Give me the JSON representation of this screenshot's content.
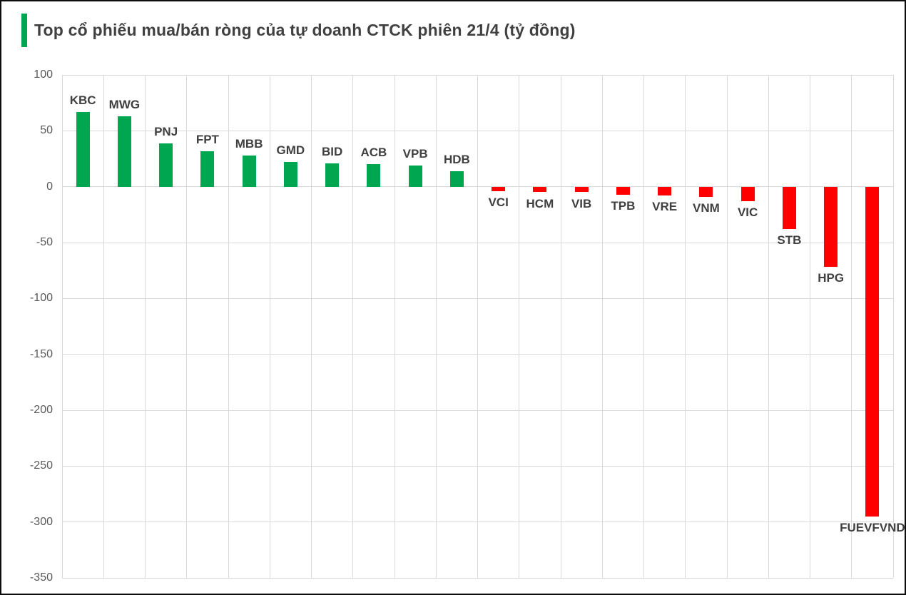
{
  "page": {
    "background_color": "#ffffff",
    "border_color": "#0d0d0d"
  },
  "header": {
    "title": "Top cổ phiếu mua/bán ròng của tự doanh CTCK phiên 21/4 (tỷ đồng)",
    "accent_color": "#00A650"
  },
  "chart_data": {
    "type": "bar",
    "title": "Top cổ phiếu mua/bán ròng của tự doanh CTCK phiên 21/4 (tỷ đồng)",
    "unit": "tỷ đồng",
    "categories": [
      "KBC",
      "MWG",
      "PNJ",
      "FPT",
      "MBB",
      "GMD",
      "BID",
      "ACB",
      "VPB",
      "HDB",
      "VCI",
      "HCM",
      "VIB",
      "TPB",
      "VRE",
      "VNM",
      "VIC",
      "STB",
      "HPG",
      "FUEVFVND"
    ],
    "values": [
      67,
      63,
      39,
      32,
      28,
      22,
      21,
      20,
      19,
      14,
      -4,
      -5,
      -5,
      -7,
      -8,
      -9,
      -13,
      -38,
      -72,
      -295
    ],
    "ylim": [
      -350,
      100
    ],
    "yticks": [
      100,
      50,
      0,
      -50,
      -100,
      -150,
      -200,
      -250,
      -300,
      -350
    ],
    "grid": true,
    "legend": false,
    "positive_color": "#00A650",
    "negative_color": "#FF0000",
    "gridline_color": "#D9D9D9",
    "tick_label_color": "#595959",
    "category_label_color": "#404040"
  }
}
